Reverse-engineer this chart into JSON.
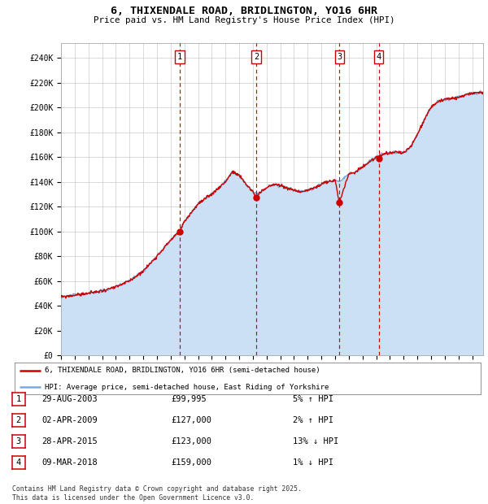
{
  "title": "6, THIXENDALE ROAD, BRIDLINGTON, YO16 6HR",
  "subtitle": "Price paid vs. HM Land Registry's House Price Index (HPI)",
  "ylim": [
    0,
    252000
  ],
  "xlim_start": 1995,
  "xlim_end": 2025.8,
  "sale_color": "#cc0000",
  "hpi_color": "#7aaadd",
  "hpi_fill_color": "#cce0f5",
  "grid_color": "#cccccc",
  "background_color": "#ffffff",
  "sale_points": [
    {
      "year": 2003.66,
      "price": 99995,
      "label": "1"
    },
    {
      "year": 2009.25,
      "price": 127000,
      "label": "2"
    },
    {
      "year": 2015.32,
      "price": 123000,
      "label": "3"
    },
    {
      "year": 2018.18,
      "price": 159000,
      "label": "4"
    }
  ],
  "vline_years": [
    2003.66,
    2009.25,
    2015.32,
    2018.18
  ],
  "legend_line1": "6, THIXENDALE ROAD, BRIDLINGTON, YO16 6HR (semi-detached house)",
  "legend_line2": "HPI: Average price, semi-detached house, East Riding of Yorkshire",
  "table_rows": [
    {
      "num": "1",
      "date": "29-AUG-2003",
      "price": "£99,995",
      "pct": "5% ↑ HPI"
    },
    {
      "num": "2",
      "date": "02-APR-2009",
      "price": "£127,000",
      "pct": "2% ↑ HPI"
    },
    {
      "num": "3",
      "date": "28-APR-2015",
      "price": "£123,000",
      "pct": "13% ↓ HPI"
    },
    {
      "num": "4",
      "date": "09-MAR-2018",
      "price": "£159,000",
      "pct": "1% ↓ HPI"
    }
  ],
  "footer": "Contains HM Land Registry data © Crown copyright and database right 2025.\nThis data is licensed under the Open Government Licence v3.0."
}
